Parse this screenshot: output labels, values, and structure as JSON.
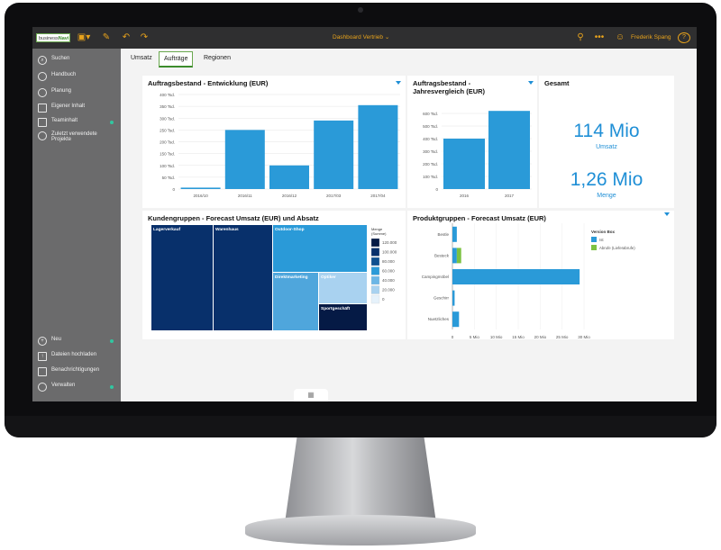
{
  "topbar": {
    "logo_text": "business",
    "logo_brand": "Navi",
    "title": "Dashboard Vertrieb",
    "user_name": "Frederik Spang",
    "help": "?"
  },
  "sidebar": {
    "top_items": [
      {
        "label": "Suchen",
        "icon": "search-icon"
      },
      {
        "label": "Handbuch",
        "icon": "book-icon"
      },
      {
        "label": "Planung",
        "icon": "planning-icon"
      },
      {
        "label": "Eigener Inhalt",
        "icon": "folder-icon"
      },
      {
        "label": "Teaminhalt",
        "icon": "team-folder-icon"
      },
      {
        "label": "Zuletzt verwendete Projekte",
        "icon": "recent-icon"
      }
    ],
    "bottom_items": [
      {
        "label": "Neu",
        "icon": "plus-icon"
      },
      {
        "label": "Dateien hochladen",
        "icon": "upload-icon"
      },
      {
        "label": "Benachrichtigungen",
        "icon": "notification-icon"
      },
      {
        "label": "Verwalten",
        "icon": "manage-icon"
      }
    ]
  },
  "tabs": [
    {
      "label": "Umsatz"
    },
    {
      "label": "Aufträge",
      "active": true
    },
    {
      "label": "Regionen"
    }
  ],
  "kpi": {
    "title": "Gesamt",
    "value1": "114 Mio",
    "label1": "Umsatz",
    "value2": "1,26 Mio",
    "label2": "Menge"
  },
  "colors": {
    "accent": "#1f8fd6",
    "bar": "#2a9ad8",
    "sidebar": "#6b6b6c",
    "topbar": "#2f2f30",
    "brand_orange": "#e8a31c",
    "brand_green": "#3c8c2c"
  },
  "chart_data": [
    {
      "type": "bar",
      "title": "Auftragsbestand - Entwicklung (EUR)",
      "categories": [
        "2016/10",
        "2016/11",
        "2016/12",
        "2017/03",
        "2017/04"
      ],
      "values": [
        6,
        250,
        100,
        290,
        355
      ],
      "value_unit": "Tsd.",
      "ylim": [
        0,
        400
      ],
      "yticks": [
        "0",
        "50 Tsd.",
        "100 Tsd.",
        "150 Tsd.",
        "200 Tsd.",
        "250 Tsd.",
        "300 Tsd.",
        "350 Tsd.",
        "400 Tsd."
      ],
      "grid": true
    },
    {
      "type": "bar",
      "title": "Auftragsbestand - Jahresvergleich (EUR)",
      "categories": [
        "2016",
        "2017"
      ],
      "values": [
        400,
        620
      ],
      "value_unit": "Tsd.",
      "ylim": [
        0,
        700
      ],
      "yticks": [
        "0",
        "100 Tsd.",
        "200 Tsd.",
        "300 Tsd.",
        "400 Tsd.",
        "500 Tsd.",
        "600 Tsd."
      ],
      "grid": true
    },
    {
      "type": "heatmap",
      "title": "Kundengruppen - Forecast Umsatz (EUR) und Absatz",
      "cells": [
        {
          "label": "Lagerverkauf",
          "color": "#08306b"
        },
        {
          "label": "Warenhaus",
          "color": "#08306b"
        },
        {
          "label": "Outdoor-Shop",
          "color": "#2a9ad8"
        },
        {
          "label": "Direktmarketing",
          "color": "#4fa6dc"
        },
        {
          "label": "Optiker",
          "color": "#a9d2f0"
        },
        {
          "label": "Sportgeschäft",
          "color": "#051a45"
        }
      ],
      "legend_title": "Menge (Summe)",
      "legend": [
        {
          "label": "120.000",
          "color": "#051a45"
        },
        {
          "label": "100.000",
          "color": "#08306b"
        },
        {
          "label": "80.000",
          "color": "#0d4f8f"
        },
        {
          "label": "60.000",
          "color": "#2a9ad8"
        },
        {
          "label": "40.000",
          "color": "#6bb6e6"
        },
        {
          "label": "20.000",
          "color": "#a9d2f0"
        },
        {
          "label": "0",
          "color": "#e6f2fb"
        }
      ]
    },
    {
      "type": "bar",
      "orientation": "horizontal",
      "title": "Produktgruppen - Forecast Umsatz (EUR)",
      "categories": [
        "Bestle",
        "Besteck",
        "Campingmöbel",
        "Geschirr",
        "Nuetzliches"
      ],
      "series": [
        {
          "name": "Ist",
          "values": [
            1,
            1,
            29,
            0.5,
            1.5
          ],
          "color": "#2a9ad8"
        },
        {
          "name": "Abrufe (Lieferabrufe)",
          "values": [
            0,
            1,
            0,
            0,
            0
          ],
          "color": "#7cc242"
        }
      ],
      "xlim": [
        0,
        30
      ],
      "xticks": [
        "0",
        "5 Mio",
        "10 Mio",
        "15 Mio",
        "20 Mio",
        "25 Mio",
        "30 Mio"
      ],
      "legend_title": "Version Box",
      "legend_position": "top-right"
    }
  ]
}
